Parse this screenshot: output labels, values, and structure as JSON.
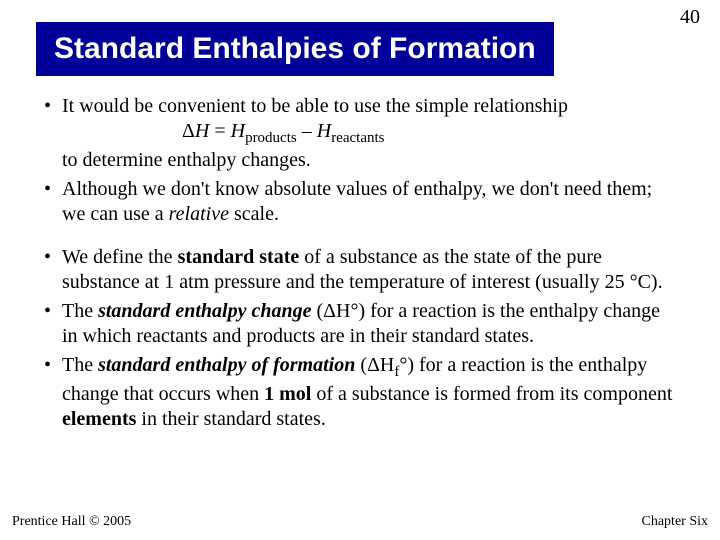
{
  "page_number": "40",
  "title": "Standard Enthalpies of Formation",
  "bullets_block1": {
    "b1_pre": "It would be convenient to be able to use the simple relationship",
    "b1_eq_delta": "Δ",
    "b1_eq_H1": "H",
    "b1_eq_eq": " = ",
    "b1_eq_H2": "H",
    "b1_eq_sub1": "products",
    "b1_eq_minus": " – ",
    "b1_eq_H3": "H",
    "b1_eq_sub2": "reactants",
    "b1_post": "to determine enthalpy changes.",
    "b2_a": "Although we don't know absolute values of enthalpy, we don't need them; we can use a ",
    "b2_i": "relative",
    "b2_b": " scale."
  },
  "bullets_block2": {
    "b3_a": "We define the ",
    "b3_bold": "standard state",
    "b3_b": " of a substance as the state of the pure substance at 1 atm pressure and the temperature of interest (usually 25 °C).",
    "b4_a": "The ",
    "b4_bold": "standard enthalpy change",
    "b4_paren_open": " (",
    "b4_dH": "ΔH",
    "b4_deg": "°",
    "b4_paren_close": ") ",
    "b4_b": "for a reaction is the enthalpy change in which reactants and products are in their standard states.",
    "b5_a": "The ",
    "b5_bold": "standard enthalpy of formation",
    "b5_paren_open": " (",
    "b5_dH": "ΔH",
    "b5_f": "f",
    "b5_deg": "°",
    "b5_paren_close": ") ",
    "b5_b": "for a reaction is the enthalpy change that occurs when ",
    "b5_bold2": "1 mol",
    "b5_c": " of a substance is formed from its component ",
    "b5_bold3": "elements",
    "b5_d": " in their standard states."
  },
  "footer": {
    "left": "Prentice Hall © 2005",
    "right": "Chapter Six"
  },
  "colors": {
    "title_bg": "#000099",
    "title_fg": "#ffffff",
    "text": "#000000",
    "background": "#ffffff"
  }
}
